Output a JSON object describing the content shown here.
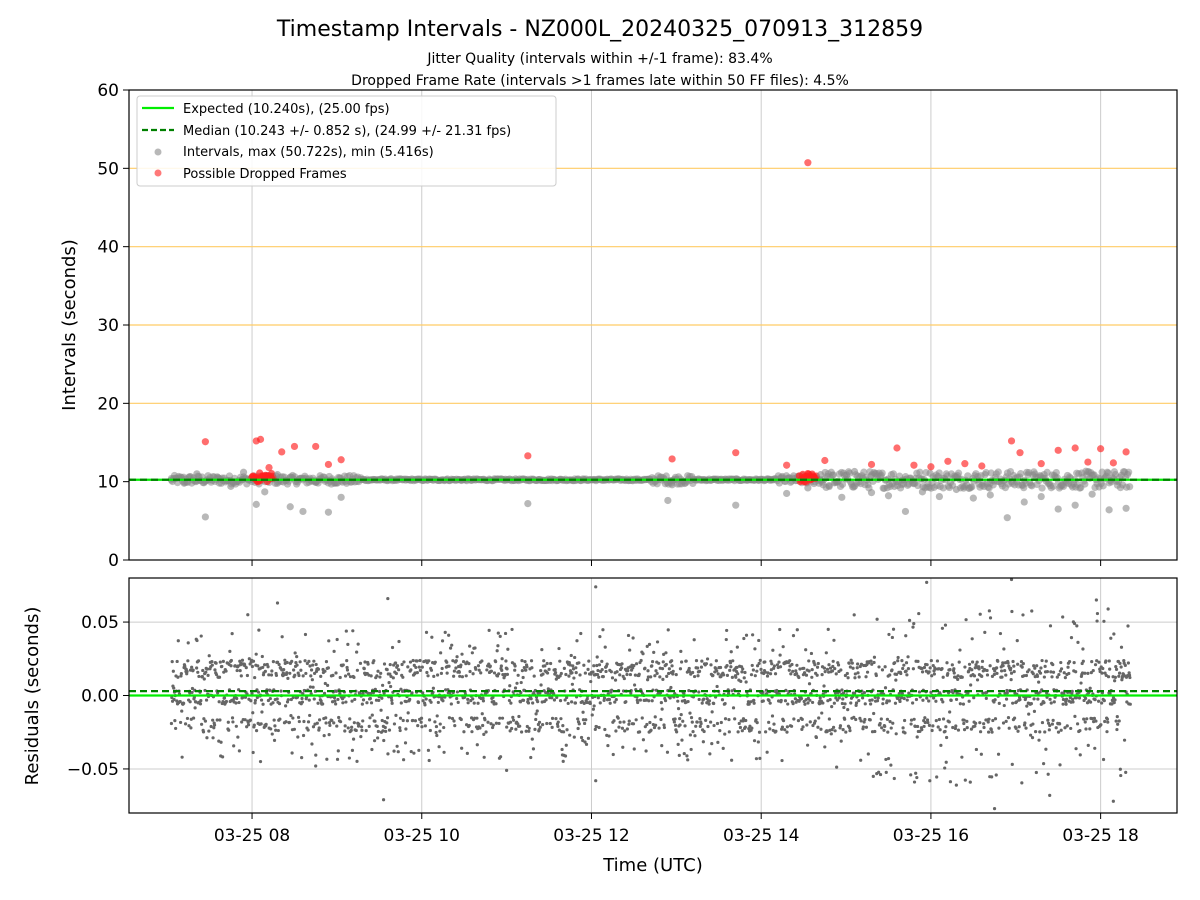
{
  "title": "Timestamp Intervals - NZ000L_20240325_070913_312859",
  "subtitle_1": "Jitter Quality (intervals within +/-1 frame): 83.4%",
  "subtitle_2": "Dropped Frame Rate (intervals >1 frames late within 50 FF files): 4.5%",
  "colors": {
    "expected": "#00ee00",
    "median": "#008000",
    "interval": "#888888",
    "dropped": "#ff2020",
    "threshold": "#ffcc66",
    "grid": "#cccccc"
  },
  "chart_data": [
    {
      "type": "scatter",
      "ylabel": "Intervals (seconds)",
      "ylim": [
        0,
        60
      ],
      "yticks": [
        0,
        10,
        20,
        30,
        40,
        50,
        60
      ],
      "xlim_hours": [
        6.55,
        18.9
      ],
      "grid": "vertical",
      "horizontal_reference_lines": [
        20,
        30,
        40,
        50
      ],
      "legend_position": "upper-left",
      "legend": [
        {
          "label": "Expected (10.240s), (25.00 fps)",
          "style": "solid-line",
          "color": "#00ee00"
        },
        {
          "label": "Median (10.243 +/- 0.852 s), (24.99 +/- 21.31 fps)",
          "style": "dashed-line",
          "color": "#008000"
        },
        {
          "label": "Intervals, max (50.722s), min (5.416s)",
          "style": "marker",
          "color": "#888888"
        },
        {
          "label": "Possible Dropped Frames",
          "style": "marker",
          "color": "#ff2020"
        }
      ],
      "expected_line": 10.24,
      "median_line": 10.243,
      "series_intervals": {
        "name": "Intervals, max (50.722s), min (5.416s)",
        "x_hours": [
          7.05,
          7.2,
          7.35,
          7.45,
          7.6,
          7.75,
          7.9,
          8.05,
          8.15,
          8.3,
          8.45,
          8.6,
          8.75,
          8.9,
          9.05,
          11.25,
          12.9,
          12.95,
          13.7,
          14.3,
          14.55,
          14.7,
          14.8,
          14.95,
          15.1,
          15.3,
          15.5,
          15.7,
          15.9,
          16.1,
          16.3,
          16.5,
          16.7,
          16.9,
          17.1,
          17.3,
          17.5,
          17.7,
          17.9,
          18.1,
          18.3
        ],
        "y": [
          10.2,
          9.8,
          11.0,
          5.5,
          10.5,
          9.4,
          11.2,
          7.1,
          8.7,
          10.9,
          6.8,
          6.2,
          9.9,
          6.1,
          8.0,
          7.2,
          7.6,
          9.6,
          7.0,
          8.5,
          9.2,
          10.9,
          9.5,
          8.0,
          11.3,
          8.6,
          8.2,
          6.2,
          8.7,
          8.1,
          9.0,
          7.9,
          8.3,
          5.4,
          7.4,
          8.1,
          6.5,
          7.0,
          8.4,
          6.4,
          6.6
        ]
      },
      "series_dropped": {
        "name": "Possible Dropped Frames",
        "x_hours": [
          7.45,
          8.05,
          8.1,
          8.2,
          8.35,
          8.5,
          8.75,
          8.9,
          9.05,
          11.25,
          12.95,
          13.7,
          14.3,
          14.55,
          14.6,
          14.75,
          15.3,
          15.6,
          15.8,
          16.0,
          16.2,
          16.4,
          16.6,
          16.95,
          17.05,
          17.3,
          17.5,
          17.7,
          17.85,
          18.0,
          18.15,
          18.3
        ],
        "y": [
          15.1,
          15.2,
          15.4,
          11.8,
          13.8,
          14.5,
          14.5,
          12.2,
          12.8,
          13.3,
          12.9,
          13.7,
          12.1,
          50.722,
          10.4,
          12.7,
          12.2,
          14.3,
          12.1,
          11.9,
          12.6,
          12.3,
          12.0,
          15.2,
          13.7,
          12.3,
          14.0,
          14.3,
          12.5,
          14.2,
          12.4,
          13.8
        ]
      }
    },
    {
      "type": "scatter",
      "xlabel": "Time (UTC)",
      "ylabel": "Residuals (seconds)",
      "ylim": [
        -0.08,
        0.08
      ],
      "yticks": [
        -0.05,
        0.0,
        0.05
      ],
      "ytick_labels": [
        "−0.05",
        "0.00",
        "0.05"
      ],
      "xlim_hours": [
        6.55,
        18.9
      ],
      "xticks_hours": [
        8,
        10,
        12,
        14,
        16,
        18
      ],
      "xtick_labels": [
        "03-25 08",
        "03-25 10",
        "03-25 12",
        "03-25 14",
        "03-25 16",
        "03-25 18"
      ],
      "grid": "both",
      "expected_line": 0.0,
      "median_line": 0.003,
      "x_range_hours": [
        7.05,
        18.35
      ],
      "dominant_levels": [
        0.018,
        -0.001,
        -0.02
      ],
      "outliers": [
        {
          "x": 8.3,
          "y": 0.063
        },
        {
          "x": 9.6,
          "y": 0.066
        },
        {
          "x": 9.55,
          "y": -0.071
        },
        {
          "x": 11.0,
          "y": -0.051
        },
        {
          "x": 12.05,
          "y": 0.074
        },
        {
          "x": 12.05,
          "y": -0.058
        },
        {
          "x": 15.95,
          "y": 0.077
        },
        {
          "x": 16.3,
          "y": -0.061
        },
        {
          "x": 16.75,
          "y": -0.077
        },
        {
          "x": 16.95,
          "y": 0.079
        },
        {
          "x": 17.4,
          "y": -0.068
        },
        {
          "x": 17.95,
          "y": 0.065
        },
        {
          "x": 18.15,
          "y": -0.072
        },
        {
          "x": 7.95,
          "y": 0.055
        },
        {
          "x": 8.1,
          "y": -0.045
        },
        {
          "x": 8.75,
          "y": -0.048
        }
      ]
    }
  ]
}
